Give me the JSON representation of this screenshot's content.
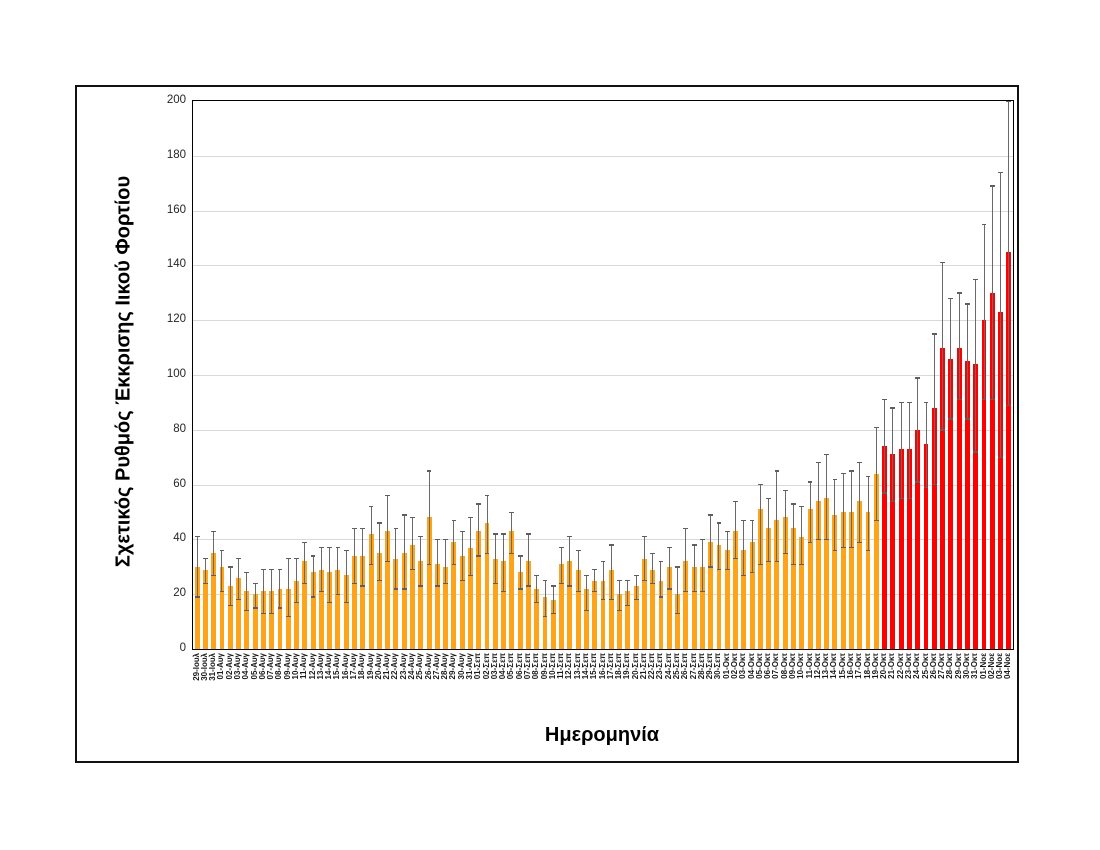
{
  "chart": {
    "frame_color": "#111111",
    "plot_border_color": "#000000",
    "gridline_color": "#d9d9d9",
    "error_bar_color": "#6a6a6a",
    "y_ticks": [
      0,
      20,
      40,
      60,
      80,
      100,
      120,
      140,
      160,
      180,
      200
    ]
  },
  "chart_data": {
    "type": "bar",
    "title": "",
    "xlabel": "Ημερομηνία",
    "ylabel": "Σχετικός Ρυθμός Έκκρισης Ιικού Φορτίου",
    "ylim": [
      0,
      200
    ],
    "grid": true,
    "legend": false,
    "bar_color_phase1": "#ffa318",
    "bar_color_phase2": "#ff0000",
    "red_start_index": 83,
    "red_start_category": "20-Οκτ",
    "categories": [
      "29-Ιουλ",
      "30-Ιουλ",
      "31-Ιουλ",
      "01-Αυγ",
      "02-Αυγ",
      "03-Αυγ",
      "04-Αυγ",
      "05-Αυγ",
      "06-Αυγ",
      "07-Αυγ",
      "08-Αυγ",
      "09-Αυγ",
      "10-Αυγ",
      "11-Αυγ",
      "12-Αυγ",
      "13-Αυγ",
      "14-Αυγ",
      "15-Αυγ",
      "16-Αυγ",
      "17-Αυγ",
      "18-Αυγ",
      "19-Αυγ",
      "20-Αυγ",
      "21-Αυγ",
      "22-Αυγ",
      "23-Αυγ",
      "24-Αυγ",
      "25-Αυγ",
      "26-Αυγ",
      "27-Αυγ",
      "28-Αυγ",
      "29-Αυγ",
      "30-Αυγ",
      "31-Αυγ",
      "01-Σεπ",
      "02-Σεπ",
      "03-Σεπ",
      "04-Σεπ",
      "05-Σεπ",
      "06-Σεπ",
      "07-Σεπ",
      "08-Σεπ",
      "09-Σεπ",
      "10-Σεπ",
      "11-Σεπ",
      "12-Σεπ",
      "13-Σεπ",
      "14-Σεπ",
      "15-Σεπ",
      "16-Σεπ",
      "17-Σεπ",
      "18-Σεπ",
      "19-Σεπ",
      "20-Σεπ",
      "21-Σεπ",
      "22-Σεπ",
      "23-Σεπ",
      "24-Σεπ",
      "25-Σεπ",
      "26-Σεπ",
      "27-Σεπ",
      "28-Σεπ",
      "29-Σεπ",
      "30-Σεπ",
      "01-Οκτ",
      "02-Οκτ",
      "03-Οκτ",
      "04-Οκτ",
      "05-Οκτ",
      "06-Οκτ",
      "07-Οκτ",
      "08-Οκτ",
      "09-Οκτ",
      "10-Οκτ",
      "11-Οκτ",
      "12-Οκτ",
      "13-Οκτ",
      "14-Οκτ",
      "15-Οκτ",
      "16-Οκτ",
      "17-Οκτ",
      "18-Οκτ",
      "19-Οκτ",
      "20-Οκτ",
      "21-Οκτ",
      "22-Οκτ",
      "23-Οκτ",
      "24-Οκτ",
      "25-Οκτ",
      "26-Οκτ",
      "27-Οκτ",
      "28-Οκτ",
      "29-Οκτ",
      "30-Οκτ",
      "31-Οκτ",
      "01-Νοε",
      "02-Νοε",
      "03-Νοε",
      "04-Νοε"
    ],
    "series": [
      {
        "name": "Σχετικός Ρυθμός Έκκρισης Ιικού Φορτίου",
        "values": [
          30,
          29,
          35,
          30,
          23,
          26,
          21,
          20,
          21,
          21,
          22,
          22,
          25,
          32,
          28,
          29,
          28,
          29,
          27,
          34,
          34,
          42,
          35,
          43,
          33,
          35,
          38,
          32,
          48,
          31,
          30,
          39,
          34,
          37,
          43,
          46,
          33,
          32,
          43,
          28,
          32,
          22,
          19,
          18,
          31,
          32,
          29,
          22,
          25,
          25,
          29,
          20,
          21,
          23,
          33,
          29,
          25,
          30,
          20,
          32,
          30,
          30,
          39,
          38,
          36,
          43,
          36,
          39,
          51,
          44,
          47,
          48,
          44,
          41,
          51,
          54,
          55,
          49,
          50,
          50,
          54,
          50,
          64,
          74,
          71,
          73,
          73,
          80,
          75,
          88,
          110,
          106,
          110,
          105,
          104,
          120,
          130,
          123,
          145
        ]
      }
    ],
    "error_low": [
      19,
      24,
      27,
      21,
      16,
      18,
      14,
      15,
      13,
      13,
      15,
      12,
      17,
      24,
      19,
      21,
      17,
      20,
      17,
      24,
      23,
      31,
      25,
      32,
      22,
      22,
      29,
      23,
      31,
      23,
      24,
      31,
      25,
      27,
      34,
      35,
      24,
      21,
      35,
      22,
      23,
      17,
      12,
      13,
      24,
      23,
      21,
      14,
      21,
      18,
      18,
      14,
      16,
      18,
      25,
      24,
      19,
      22,
      13,
      21,
      21,
      21,
      30,
      29,
      29,
      33,
      27,
      28,
      31,
      32,
      32,
      35,
      31,
      31,
      39,
      40,
      40,
      36,
      37,
      37,
      39,
      36,
      47,
      57,
      54,
      55,
      55,
      61,
      59,
      60,
      80,
      84,
      91,
      84,
      72,
      91,
      91,
      70,
      89
    ],
    "error_high": [
      41,
      33,
      43,
      36,
      30,
      33,
      28,
      24,
      29,
      29,
      29,
      33,
      33,
      39,
      34,
      37,
      37,
      37,
      36,
      44,
      44,
      52,
      46,
      56,
      44,
      49,
      48,
      41,
      65,
      40,
      40,
      47,
      43,
      48,
      53,
      56,
      42,
      42,
      50,
      34,
      42,
      27,
      25,
      23,
      37,
      41,
      36,
      27,
      29,
      32,
      38,
      25,
      25,
      27,
      41,
      35,
      32,
      37,
      30,
      44,
      38,
      40,
      49,
      46,
      43,
      54,
      47,
      47,
      60,
      55,
      65,
      58,
      53,
      52,
      61,
      68,
      71,
      62,
      64,
      65,
      68,
      63,
      81,
      91,
      88,
      90,
      90,
      99,
      90,
      115,
      141,
      128,
      130,
      126,
      135,
      155,
      169,
      174,
      200
    ]
  }
}
